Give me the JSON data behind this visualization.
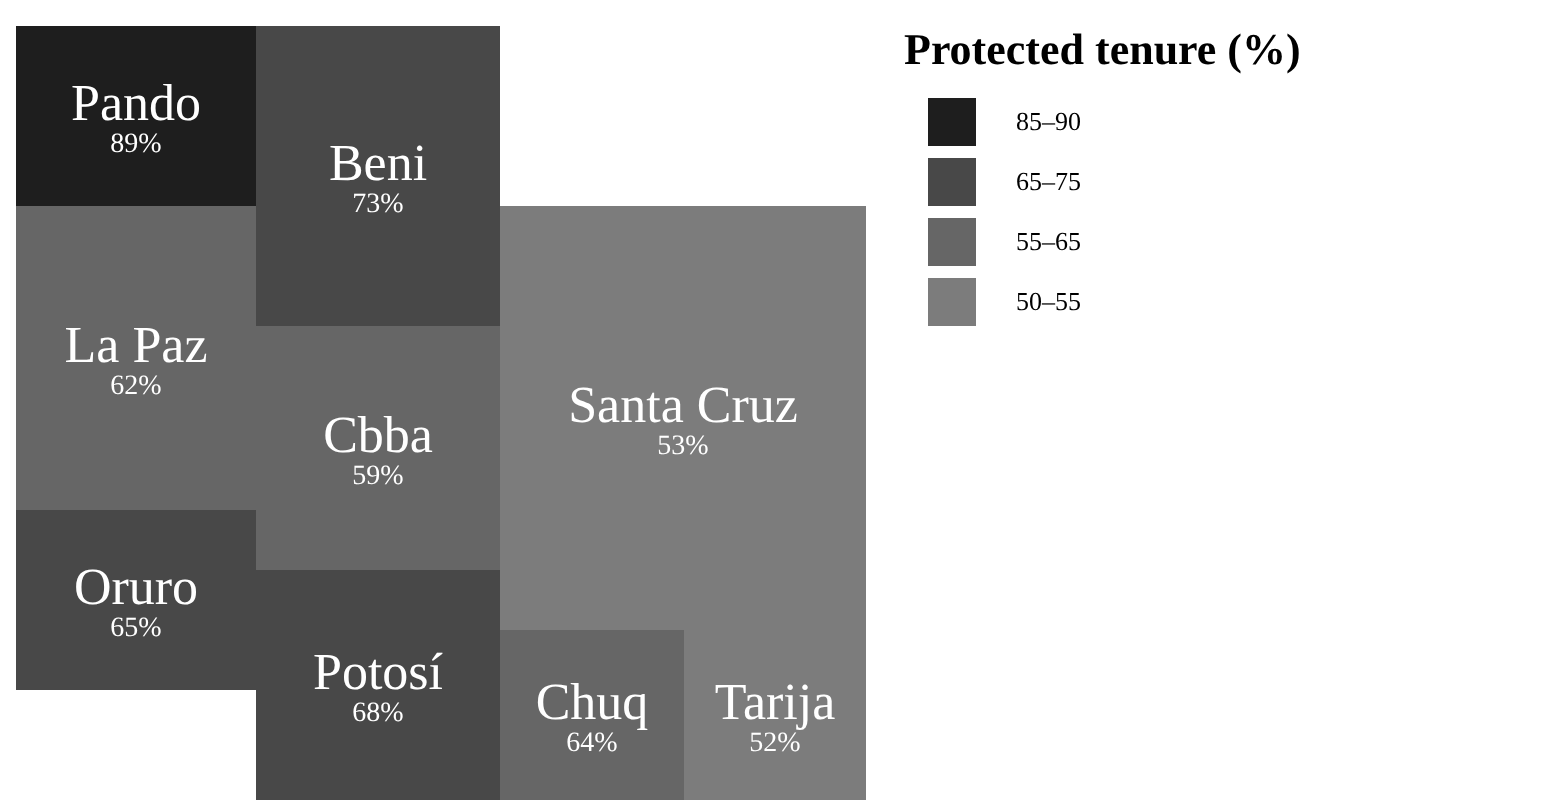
{
  "chart_data": {
    "type": "other",
    "legend_title": "Protected tenure (%)",
    "legend": "top right",
    "categories": [
      "Pando",
      "Beni",
      "La Paz",
      "Oruro",
      "Cbba",
      "Santa Cruz",
      "Potosí",
      "Chuq",
      "Tarija"
    ],
    "series": [
      {
        "name": "85–90",
        "color": "#1e1e1e",
        "values": [
          89,
          null,
          null,
          null,
          null,
          null,
          null,
          null,
          null
        ],
        "value_labels": [
          "89%",
          null,
          null,
          null,
          null,
          null,
          null,
          null,
          null
        ]
      },
      {
        "name": "65–75",
        "color": "#484848",
        "values": [
          null,
          73,
          null,
          65,
          null,
          null,
          68,
          null,
          null
        ],
        "value_labels": [
          null,
          "73%",
          null,
          "65%",
          null,
          null,
          "68%",
          null,
          null
        ]
      },
      {
        "name": "55–65",
        "color": "#666666",
        "values": [
          null,
          null,
          62,
          null,
          59,
          null,
          null,
          64,
          null
        ],
        "value_labels": [
          null,
          null,
          "62%",
          null,
          "59%",
          null,
          null,
          "64%",
          null
        ]
      },
      {
        "name": "50–55",
        "color": "#7c7c7c",
        "values": [
          null,
          null,
          null,
          null,
          null,
          53,
          null,
          null,
          52
        ],
        "value_labels": [
          null,
          null,
          null,
          null,
          null,
          "53%",
          null,
          null,
          "52%"
        ]
      }
    ]
  }
}
